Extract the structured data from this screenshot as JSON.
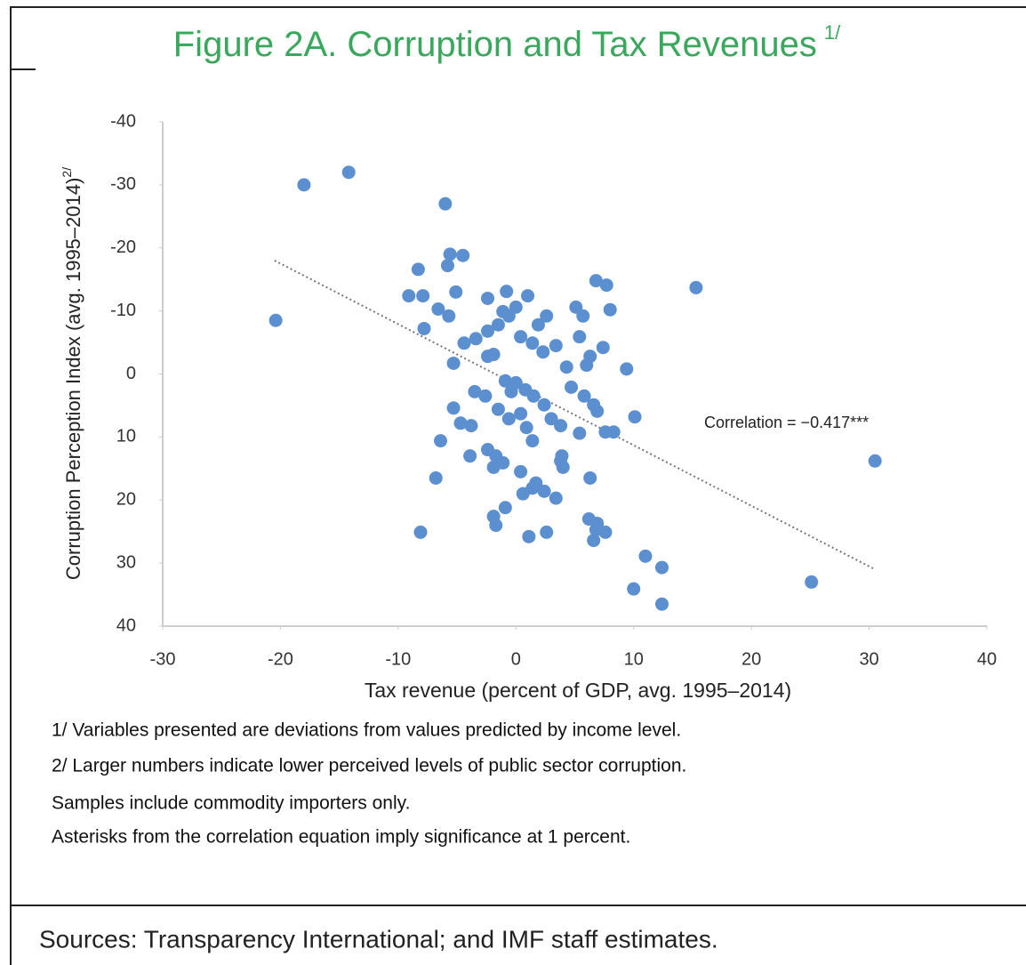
{
  "chart_data": {
    "type": "scatter",
    "title": "Figure 2A. Corruption and Tax Revenues",
    "title_note": "1/",
    "x_label": "Tax revenue (percent of GDP, avg. 1995–2014)",
    "y_label": "Corruption Perception Index (avg. 1995–2014)",
    "y_label_note": "2/",
    "annotation": "Correlation = −0.417***",
    "color": "#5b8fd0",
    "xlim": [
      -30,
      40
    ],
    "xticks": [
      -30,
      -20,
      -10,
      0,
      10,
      20,
      30,
      40
    ],
    "ylim": [
      40,
      -40
    ],
    "yticks": [
      -40,
      -30,
      -20,
      -10,
      0,
      10,
      20,
      30,
      40
    ],
    "trendline": {
      "x": [
        -20.5,
        30.5
      ],
      "y": [
        -18,
        31
      ]
    },
    "x": [
      -20.4,
      -18,
      -14.2,
      -6,
      -8.3,
      -5.8,
      -4.5,
      -5.6,
      -9.1,
      -7.9,
      -5.1,
      -6.6,
      -5.7,
      -7.8,
      -5.3,
      -4.4,
      -3.4,
      -2.4,
      -1.5,
      -2.4,
      -0.8,
      -1.1,
      -0.6,
      0,
      1,
      -1.9,
      -2.4,
      0.4,
      1.4,
      2.3,
      3.4,
      1.9,
      2.6,
      5.1,
      5.7,
      6.8,
      7.7,
      8,
      5.4,
      7.4,
      4.3,
      6,
      6.3,
      9.4,
      4.7,
      5.8,
      6.6,
      6.9,
      -0.9,
      0,
      -0.4,
      0.8,
      1.5,
      2.4,
      3,
      3.8,
      -3.5,
      -2.6,
      -5.3,
      -4.7,
      -3.8,
      -1.5,
      -0.6,
      0.4,
      0.9,
      1.4,
      5.4,
      7.6,
      8.3,
      10.1,
      -6.4,
      -3.9,
      -2.4,
      -1.7,
      -1.1,
      -1.9,
      0.4,
      1.4,
      0.6,
      1.7,
      2.4,
      3.4,
      3.9,
      4,
      3.8,
      6.3,
      -6.8,
      -0.9,
      -1.9,
      -1.7,
      -8.1,
      1.1,
      2.6,
      6.2,
      6.8,
      7.6,
      6.6,
      6.9,
      11,
      12.4,
      10,
      12.4,
      15.3,
      30.5,
      25.1
    ],
    "values": [
      -8.5,
      -30,
      -32,
      -27,
      -16.6,
      -17.2,
      -18.8,
      -19,
      -12.4,
      -12.4,
      -13,
      -10.3,
      -9.2,
      -7.2,
      -1.7,
      -4.9,
      -5.6,
      -6.8,
      -7.8,
      -12,
      -13.1,
      -9.9,
      -9.2,
      -10.6,
      -12.4,
      -3.1,
      -2.8,
      -5.9,
      -4.9,
      -3.5,
      -4.5,
      -7.8,
      -9.2,
      -10.6,
      -9.2,
      -14.8,
      -14.1,
      -10.2,
      -5.9,
      -4.2,
      -1.1,
      -1.4,
      -2.8,
      -0.8,
      2.1,
      3.5,
      4.9,
      5.9,
      1.1,
      1.4,
      2.8,
      2.5,
      3.5,
      4.9,
      7.1,
      8.2,
      2.8,
      3.5,
      5.4,
      7.8,
      8.2,
      5.6,
      7.1,
      6.3,
      8.5,
      10.6,
      9.4,
      9.2,
      9.2,
      6.8,
      10.6,
      13,
      12,
      13,
      14.1,
      14.8,
      15.5,
      18.1,
      19,
      17.3,
      18.6,
      19.7,
      13,
      14.8,
      13.8,
      16.5,
      16.5,
      21.2,
      22.6,
      24,
      25.1,
      25.8,
      25.1,
      23,
      24.7,
      25.1,
      26.4,
      23.7,
      28.9,
      30.7,
      34.1,
      36.5,
      -13.7,
      13.8,
      33
    ]
  },
  "notes": [
    "1/ Variables presented are deviations from values predicted by income level.",
    "2/ Larger numbers indicate lower perceived levels of public sector corruption.",
    "Samples include commodity importers only.",
    "Asterisks from the correlation equation imply significance at 1 percent."
  ],
  "sources": "Sources: Transparency International; and IMF staff estimates."
}
